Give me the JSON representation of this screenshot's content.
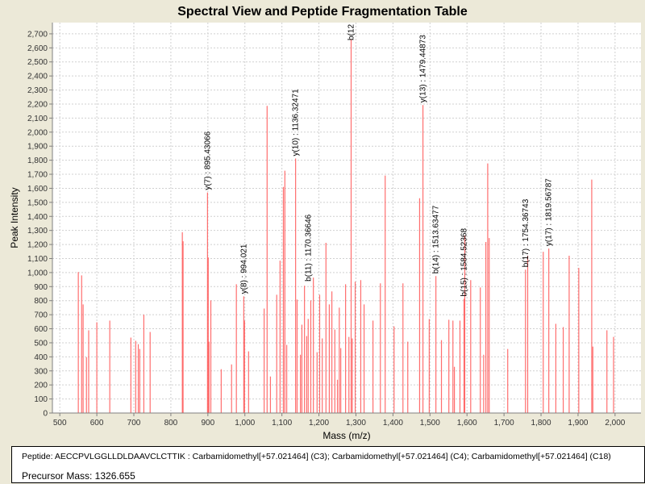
{
  "chart_data": {
    "type": "bar",
    "title": "Spectral View and Peptide Fragmentation Table",
    "xlabel": "Mass (m/z)",
    "ylabel": "Peak Intensity",
    "xlim": [
      480,
      2070
    ],
    "ylim": [
      0,
      2780
    ],
    "xticks": [
      500,
      600,
      700,
      800,
      900,
      1000,
      1100,
      1200,
      1300,
      1400,
      1500,
      1600,
      1700,
      1800,
      1900,
      2000
    ],
    "xtick_labels": [
      "500",
      "600",
      "700",
      "800",
      "900",
      "1,000",
      "1,100",
      "1,200",
      "1,300",
      "1,400",
      "1,500",
      "1,600",
      "1,700",
      "1,800",
      "1,900",
      "2,000"
    ],
    "yticks": [
      0,
      100,
      200,
      300,
      400,
      500,
      600,
      700,
      800,
      900,
      1000,
      1100,
      1200,
      1300,
      1400,
      1500,
      1600,
      1700,
      1800,
      1900,
      2000,
      2100,
      2200,
      2300,
      2400,
      2500,
      2600,
      2700
    ],
    "ytick_labels": [
      "0",
      "100",
      "200",
      "300",
      "400",
      "500",
      "600",
      "700",
      "800",
      "900",
      "1,000",
      "1,100",
      "1,200",
      "1,300",
      "1,400",
      "1,500",
      "1,600",
      "1,700",
      "1,800",
      "1,900",
      "2,000",
      "2,100",
      "2,200",
      "2,300",
      "2,400",
      "2,500",
      "2,600",
      "2,700"
    ],
    "grid": true,
    "peak_color": "#ff5555",
    "peaks": [
      [
        550,
        1004
      ],
      [
        559,
        980
      ],
      [
        563,
        773
      ],
      [
        572,
        398
      ],
      [
        578,
        589
      ],
      [
        600,
        646
      ],
      [
        635,
        658
      ],
      [
        692,
        537
      ],
      [
        705,
        514
      ],
      [
        712,
        490
      ],
      [
        716,
        456
      ],
      [
        727,
        700
      ],
      [
        744,
        577
      ],
      [
        831,
        1287
      ],
      [
        833,
        1223
      ],
      [
        899,
        1570
      ],
      [
        901,
        1108
      ],
      [
        903,
        508
      ],
      [
        908,
        802
      ],
      [
        936,
        312
      ],
      [
        964,
        346
      ],
      [
        977,
        917
      ],
      [
        997,
        831
      ],
      [
        999,
        658
      ],
      [
        1010,
        439
      ],
      [
        1052,
        744
      ],
      [
        1060,
        2187
      ],
      [
        1069,
        260
      ],
      [
        1086,
        842
      ],
      [
        1095,
        1085
      ],
      [
        1104,
        1610
      ],
      [
        1108,
        1725
      ],
      [
        1113,
        485
      ],
      [
        1137,
        1812
      ],
      [
        1141,
        808
      ],
      [
        1150,
        415
      ],
      [
        1154,
        629
      ],
      [
        1161,
        906
      ],
      [
        1167,
        548
      ],
      [
        1171,
        670
      ],
      [
        1178,
        802
      ],
      [
        1185,
        964
      ],
      [
        1195,
        433
      ],
      [
        1202,
        842
      ],
      [
        1209,
        531
      ],
      [
        1219,
        1212
      ],
      [
        1228,
        773
      ],
      [
        1235,
        866
      ],
      [
        1243,
        594
      ],
      [
        1250,
        237
      ],
      [
        1255,
        750
      ],
      [
        1259,
        462
      ],
      [
        1272,
        917
      ],
      [
        1281,
        542
      ],
      [
        1287,
        2660
      ],
      [
        1290,
        531
      ],
      [
        1298,
        935
      ],
      [
        1313,
        946
      ],
      [
        1322,
        773
      ],
      [
        1346,
        658
      ],
      [
        1366,
        923
      ],
      [
        1379,
        1691
      ],
      [
        1403,
        617
      ],
      [
        1427,
        923
      ],
      [
        1440,
        508
      ],
      [
        1472,
        1529
      ],
      [
        1481,
        2193
      ],
      [
        1498,
        669
      ],
      [
        1516,
        975
      ],
      [
        1531,
        519
      ],
      [
        1551,
        664
      ],
      [
        1562,
        658
      ],
      [
        1566,
        329
      ],
      [
        1581,
        658
      ],
      [
        1592,
        813
      ],
      [
        1594,
        1264
      ],
      [
        1610,
        946
      ],
      [
        1636,
        894
      ],
      [
        1645,
        415
      ],
      [
        1651,
        1218
      ],
      [
        1656,
        1777
      ],
      [
        1660,
        1246
      ],
      [
        1710,
        456
      ],
      [
        1758,
        1021
      ],
      [
        1764,
        1120
      ],
      [
        1806,
        1148
      ],
      [
        1821,
        1171
      ],
      [
        1840,
        635
      ],
      [
        1860,
        612
      ],
      [
        1876,
        1120
      ],
      [
        1902,
        1033
      ],
      [
        1937,
        1662
      ],
      [
        1940,
        473
      ],
      [
        1978,
        589
      ],
      [
        1996,
        542
      ]
    ],
    "annotations": [
      {
        "label": "y(7) : 895.43066",
        "x": 899,
        "y": 1570
      },
      {
        "label": "y(8) : 994.021",
        "x": 997,
        "y": 831
      },
      {
        "label": "y(10) : 1136.32471",
        "x": 1137,
        "y": 1812
      },
      {
        "label": "b(11) : 1170.36646",
        "x": 1171,
        "y": 920
      },
      {
        "label": "b(12",
        "x": 1287,
        "y": 2660
      },
      {
        "label": "y(13) : 1479.44873",
        "x": 1481,
        "y": 2193
      },
      {
        "label": "b(14) : 1513.63477",
        "x": 1516,
        "y": 975
      },
      {
        "label": "b(15) : 1584.52368",
        "x": 1592,
        "y": 813
      },
      {
        "label": "b(17) : 1754.36743",
        "x": 1758,
        "y": 1021
      },
      {
        "label": "y(17) : 1819.56787",
        "x": 1821,
        "y": 1171
      }
    ]
  },
  "info": {
    "peptide": "Peptide: AECCPVLGGLLDLDAAVCLCTTIK : Carbamidomethyl[+57.021464] (C3); Carbamidomethyl[+57.021464] (C4); Carbamidomethyl[+57.021464] (C18)",
    "precursor": "Precursor Mass: 1326.655"
  }
}
